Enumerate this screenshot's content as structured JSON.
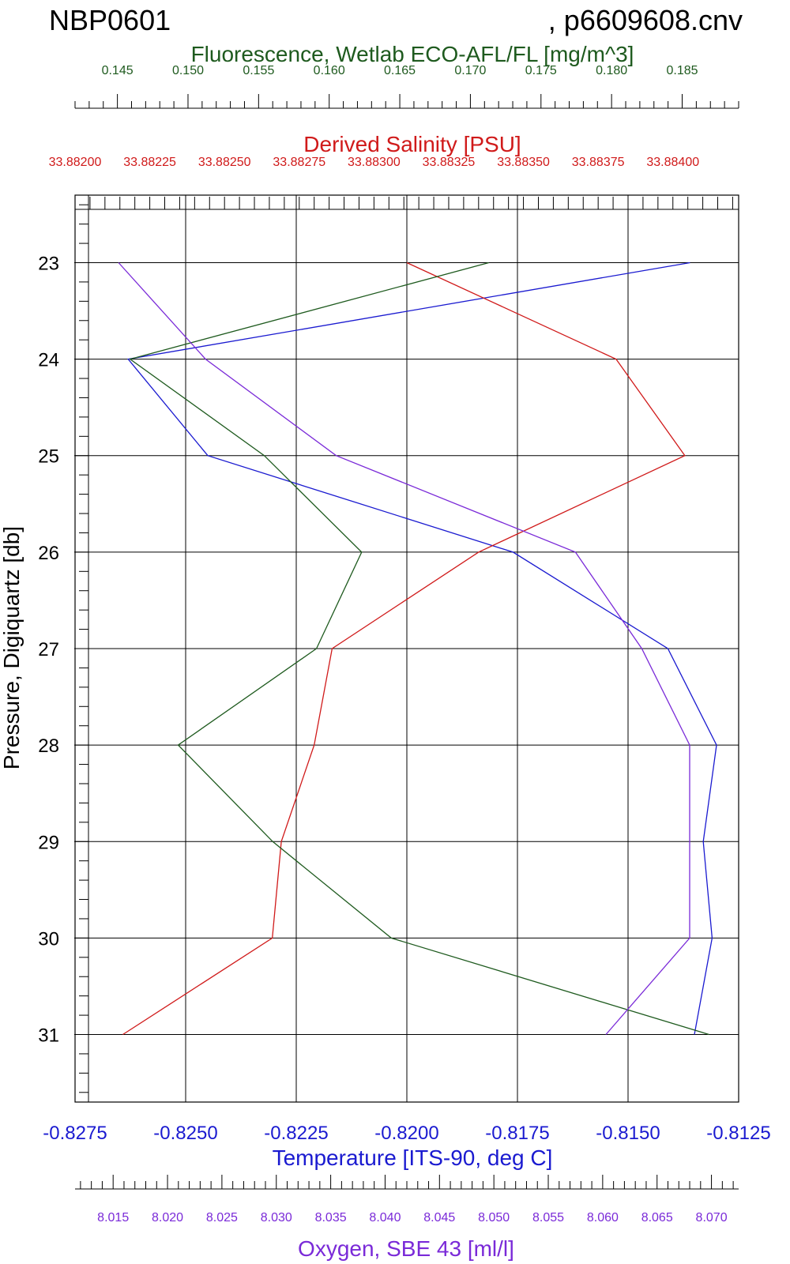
{
  "header": {
    "left_title": "NBP0601",
    "right_title": ", p6609608.cnv"
  },
  "colors": {
    "temperature": "#1a1ad0",
    "salinity": "#d01a1a",
    "fluorescence": "#1e5a1e",
    "oxygen": "#7a2ad8",
    "axis": "#000000"
  },
  "chart_data": {
    "type": "line",
    "y_axis": {
      "label": "Pressure, Digiquartz [db]",
      "range": [
        22.3,
        31.7
      ],
      "ticks": [
        23,
        24,
        25,
        26,
        27,
        28,
        29,
        30,
        31
      ],
      "tick_labels": [
        "23",
        "24",
        "25",
        "26",
        "27",
        "28",
        "29",
        "30",
        "31"
      ],
      "inverted": true
    },
    "axes": {
      "fluorescence": {
        "label": "Fluorescence, Wetlab ECO-AFL/FL [mg/m^3]",
        "range": [
          0.142,
          0.189
        ],
        "ticks": [
          0.145,
          0.15,
          0.155,
          0.16,
          0.165,
          0.17,
          0.175,
          0.18,
          0.185
        ],
        "tick_labels": [
          "0.145",
          "0.150",
          "0.155",
          "0.160",
          "0.165",
          "0.170",
          "0.175",
          "0.180",
          "0.185"
        ],
        "position": "top"
      },
      "salinity": {
        "label": "Derived Salinity [PSU]",
        "range": [
          33.882,
          33.88422
        ],
        "ticks": [
          33.882,
          33.88225,
          33.8825,
          33.88275,
          33.883,
          33.88325,
          33.8835,
          33.88375,
          33.884
        ],
        "tick_labels": [
          "33.88200",
          "33.88225",
          "33.88250",
          "33.88275",
          "33.88300",
          "33.88325",
          "33.88350",
          "33.88375",
          "33.88400"
        ],
        "position": "top"
      },
      "temperature": {
        "label": "Temperature [ITS-90, deg C]",
        "range": [
          -0.8275,
          -0.8125
        ],
        "ticks": [
          -0.8275,
          -0.825,
          -0.8225,
          -0.82,
          -0.8175,
          -0.815,
          -0.8125
        ],
        "tick_labels": [
          "-0.8275",
          "-0.8250",
          "-0.8225",
          "-0.8200",
          "-0.8175",
          "-0.8150",
          "-0.8125"
        ],
        "position": "bottom"
      },
      "oxygen": {
        "label": "Oxygen, SBE 43 [ml/l]",
        "range": [
          8.0115,
          8.0725
        ],
        "ticks": [
          8.015,
          8.02,
          8.025,
          8.03,
          8.035,
          8.04,
          8.045,
          8.05,
          8.055,
          8.06,
          8.065,
          8.07
        ],
        "tick_labels": [
          "8.015",
          "8.020",
          "8.025",
          "8.030",
          "8.035",
          "8.040",
          "8.045",
          "8.050",
          "8.055",
          "8.060",
          "8.065",
          "8.070"
        ],
        "position": "bottom"
      }
    },
    "grid": true,
    "series": [
      {
        "key": "temperature",
        "pressure": [
          23,
          24,
          25,
          26,
          27,
          28,
          29,
          30,
          31
        ],
        "values": [
          -0.8136,
          -0.8263,
          -0.8245,
          -0.8176,
          -0.8141,
          -0.813,
          -0.8133,
          -0.8131,
          -0.8135
        ]
      },
      {
        "key": "salinity",
        "pressure": [
          23,
          24,
          25,
          26,
          27,
          28,
          29,
          30,
          31
        ],
        "values": [
          33.88311,
          33.88381,
          33.88404,
          33.88335,
          33.88286,
          33.8828,
          33.88269,
          33.88266,
          33.88216
        ]
      },
      {
        "key": "fluorescence",
        "pressure": [
          23,
          24,
          25,
          26,
          27,
          28,
          29,
          30,
          31
        ],
        "values": [
          0.1713,
          0.1459,
          0.1554,
          0.1623,
          0.1591,
          0.1493,
          0.156,
          0.1644,
          0.1869
        ]
      },
      {
        "key": "oxygen",
        "pressure": [
          23,
          24,
          25,
          26,
          27,
          28,
          29,
          30,
          31
        ],
        "values": [
          8.0155,
          8.0235,
          8.0355,
          8.0575,
          8.0636,
          8.068,
          8.068,
          8.068,
          8.0603
        ]
      }
    ]
  }
}
